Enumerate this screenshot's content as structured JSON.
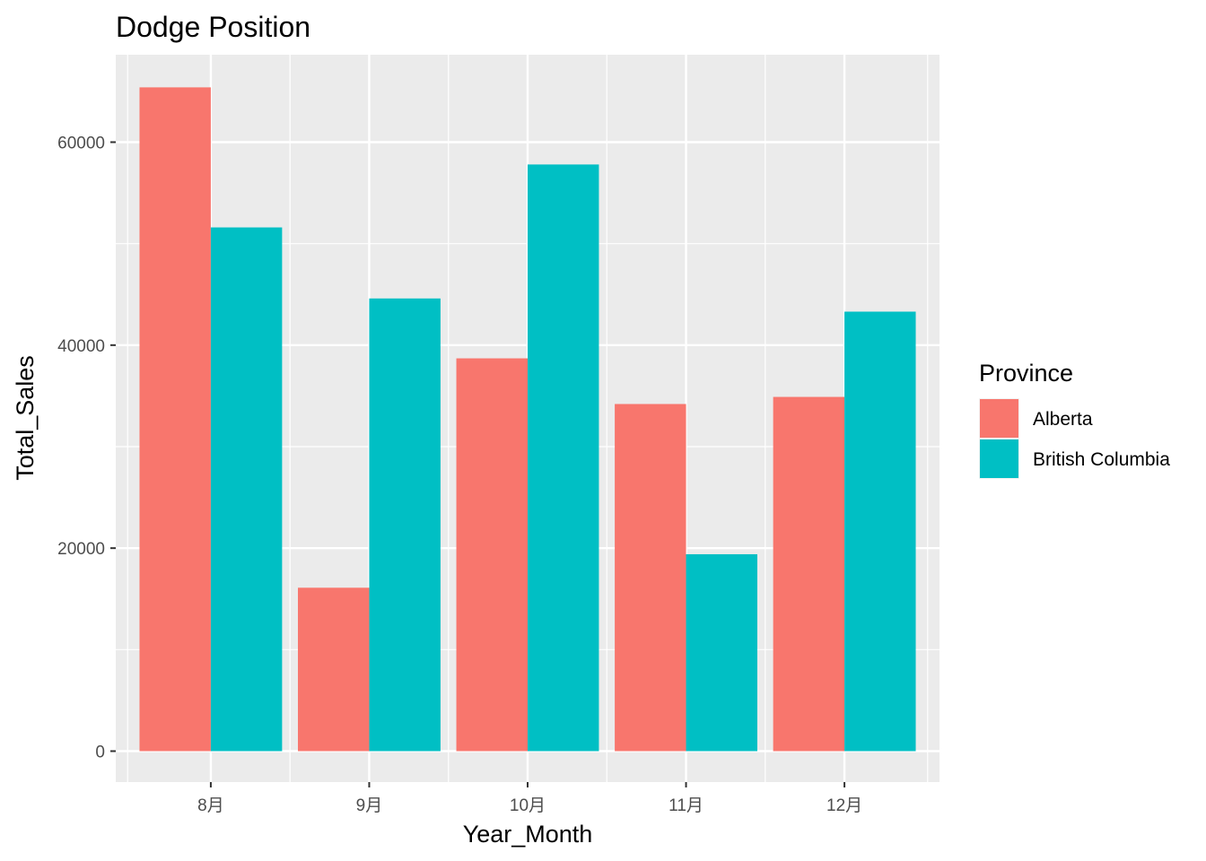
{
  "chart_data": {
    "type": "bar",
    "position": "dodge",
    "title": "Dodge Position",
    "xlabel": "Year_Month",
    "ylabel": "Total_Sales",
    "categories": [
      "8月",
      "9月",
      "10月",
      "11月",
      "12月"
    ],
    "category_widths": [
      0.9,
      0.9,
      0.9,
      0.9,
      0.9
    ],
    "series": [
      {
        "name": "Alberta",
        "color": "#F8766D",
        "values": [
          65400,
          16100,
          38700,
          34200,
          34900
        ]
      },
      {
        "name": "British Columbia",
        "color": "#00BFC4",
        "values": [
          51600,
          44600,
          57800,
          19400,
          43300
        ]
      }
    ],
    "ylim": [
      -3300,
      68300
    ],
    "yticks": [
      0,
      20000,
      40000,
      60000
    ],
    "ytick_labels": [
      "0",
      "20000",
      "40000",
      "60000"
    ],
    "grid": true,
    "legend": {
      "title": "Province",
      "placement": "right"
    },
    "panel_background": "#EBEBEB",
    "grid_color": "#FFFFFF"
  }
}
